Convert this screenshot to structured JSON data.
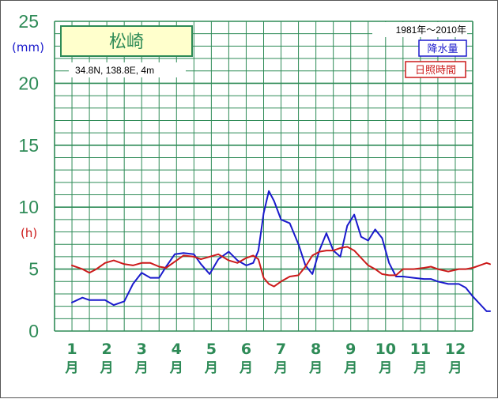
{
  "chart_data": {
    "type": "line",
    "station_name": "松崎",
    "location_text": "34.8N,  138.8E,  4m",
    "period_text": "1981年〜2010年",
    "y_units": {
      "precipitation": "(mm)",
      "sunshine": "(h)"
    },
    "y_ticks": [
      "25",
      "20",
      "15",
      "10",
      "5",
      "0"
    ],
    "ylim": [
      0,
      25
    ],
    "categories": [
      "1",
      "2",
      "3",
      "4",
      "5",
      "6",
      "7",
      "8",
      "9",
      "10",
      "11",
      "12"
    ],
    "x_unit": "月",
    "legend_placement": "top-right",
    "grid": true,
    "series": [
      {
        "name": "降水量",
        "color": "#1a1acc",
        "x": [
          0.5,
          0.8,
          1.0,
          1.2,
          1.45,
          1.7,
          2.0,
          2.25,
          2.5,
          2.75,
          3.0,
          3.2,
          3.45,
          3.7,
          4.0,
          4.2,
          4.45,
          4.7,
          5.0,
          5.25,
          5.5,
          5.7,
          5.85,
          6.0,
          6.15,
          6.3,
          6.5,
          6.75,
          7.0,
          7.2,
          7.4,
          7.6,
          7.8,
          8.0,
          8.2,
          8.4,
          8.6,
          8.8,
          9.0,
          9.2,
          9.4,
          9.6,
          9.8,
          10.0,
          10.3,
          10.6,
          10.8,
          11.0,
          11.3,
          11.6,
          11.8,
          12.0,
          12.2,
          12.4,
          12.5
        ],
        "values": [
          2.3,
          2.7,
          2.5,
          2.5,
          2.5,
          2.1,
          2.4,
          3.8,
          4.7,
          4.3,
          4.3,
          5.2,
          6.2,
          6.3,
          6.2,
          5.4,
          4.6,
          5.8,
          6.4,
          5.7,
          5.3,
          5.5,
          6.5,
          9.5,
          11.3,
          10.5,
          9.0,
          8.7,
          7.0,
          5.3,
          4.6,
          6.5,
          7.9,
          6.5,
          6.0,
          8.5,
          9.4,
          7.6,
          7.3,
          8.2,
          7.5,
          5.5,
          4.4,
          4.4,
          4.3,
          4.2,
          4.2,
          4.0,
          3.8,
          3.8,
          3.5,
          2.8,
          2.2,
          1.6,
          1.6
        ]
      },
      {
        "name": "日照時間",
        "color": "#cc1a1a",
        "x": [
          0.5,
          0.8,
          1.0,
          1.2,
          1.45,
          1.7,
          2.0,
          2.25,
          2.5,
          2.75,
          3.0,
          3.2,
          3.45,
          3.7,
          4.0,
          4.2,
          4.45,
          4.7,
          5.0,
          5.25,
          5.5,
          5.7,
          5.85,
          6.0,
          6.15,
          6.3,
          6.5,
          6.75,
          7.0,
          7.2,
          7.4,
          7.6,
          7.8,
          8.0,
          8.2,
          8.4,
          8.6,
          8.8,
          9.0,
          9.2,
          9.4,
          9.6,
          9.8,
          10.0,
          10.3,
          10.6,
          10.8,
          11.0,
          11.3,
          11.6,
          11.8,
          12.0,
          12.2,
          12.4,
          12.5
        ],
        "values": [
          5.3,
          5.0,
          4.7,
          5.0,
          5.5,
          5.7,
          5.4,
          5.3,
          5.5,
          5.5,
          5.2,
          5.1,
          5.6,
          6.1,
          6.0,
          5.8,
          6.0,
          6.2,
          5.7,
          5.5,
          5.9,
          6.1,
          5.8,
          4.3,
          3.8,
          3.6,
          4.0,
          4.4,
          4.5,
          5.2,
          6.1,
          6.4,
          6.5,
          6.5,
          6.7,
          6.8,
          6.5,
          5.9,
          5.3,
          5.0,
          4.6,
          4.5,
          4.5,
          5.0,
          5.0,
          5.1,
          5.2,
          5.0,
          4.8,
          5.0,
          5.0,
          5.1,
          5.3,
          5.5,
          5.4
        ]
      }
    ]
  }
}
